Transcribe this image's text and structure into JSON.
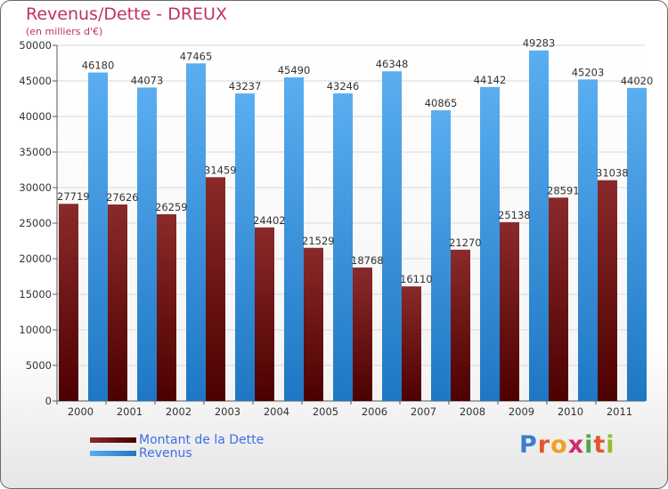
{
  "title": "Revenus/Dette - DREUX",
  "subtitle": "(en milliers d'€)",
  "logo": {
    "text": "Proxiti",
    "letter_colors": [
      "#3a7fd0",
      "#e4572e",
      "#f0a020",
      "#d02b6d",
      "#4aa84a",
      "#e4572e",
      "#8fbf2b"
    ]
  },
  "colors": {
    "dette_top": "#8a2a2a",
    "dette_bottom": "#4d0000",
    "revenus_top": "#5aaef0",
    "revenus_bottom": "#1f77c4",
    "title": "#c0306a",
    "legend_text": "#3f6ee8"
  },
  "chart_data": {
    "type": "bar",
    "title": "Revenus/Dette - DREUX",
    "subtitle": "(en milliers d'€)",
    "categories": [
      "2000",
      "2001",
      "2002",
      "2003",
      "2004",
      "2005",
      "2006",
      "2007",
      "2008",
      "2009",
      "2010",
      "2011"
    ],
    "series": [
      {
        "name": "Montant de la Dette",
        "values": [
          27719,
          27626,
          26259,
          31459,
          24402,
          21529,
          18768,
          16110,
          21270,
          25138,
          28591,
          31038
        ],
        "labels": [
          "27719",
          "27626",
          "26259",
          "31459",
          "24402",
          "21529",
          "18768",
          "16110",
          "21270",
          "25138",
          "28591",
          "31038"
        ]
      },
      {
        "name": "Revenus",
        "values": [
          46180,
          44073,
          47465,
          43237,
          45490,
          43246,
          46348,
          40865,
          44142,
          49283,
          45203,
          44020
        ],
        "labels": [
          "46180",
          "44073",
          "47465",
          "43237",
          "45490",
          "43246",
          "46348",
          "40865",
          "44142",
          "49283",
          "45203",
          "44020"
        ]
      }
    ],
    "yticks": [
      "0",
      "5000",
      "10000",
      "15000",
      "20000",
      "25000",
      "30000",
      "35000",
      "40000",
      "45000",
      "50000"
    ],
    "ylim": [
      0,
      50000
    ],
    "grid": true,
    "legend_position": "bottom-left"
  }
}
